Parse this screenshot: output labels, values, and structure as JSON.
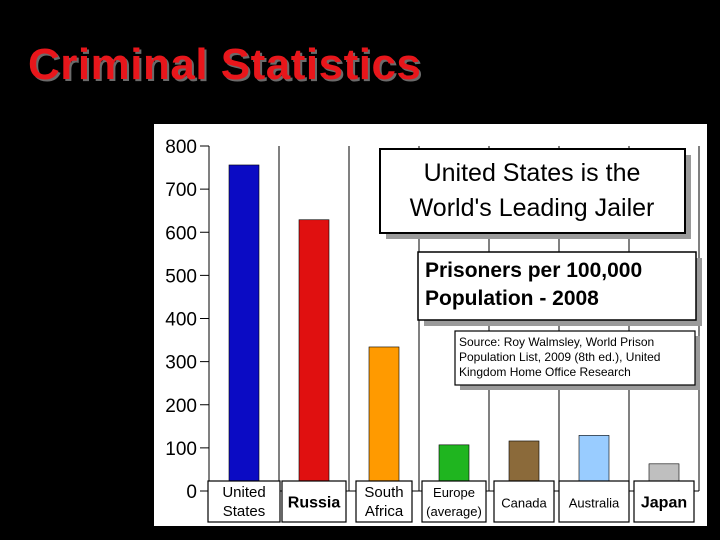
{
  "slide": {
    "title": "Criminal Statistics"
  },
  "colors": {
    "background": "#000000",
    "title": "#e8161b"
  },
  "chart_data": {
    "type": "bar",
    "categories": [
      [
        "United",
        "States"
      ],
      [
        "Russia"
      ],
      [
        "South",
        "Africa"
      ],
      [
        "Europe",
        "(average)"
      ],
      [
        "Canada"
      ],
      [
        "Australia"
      ],
      [
        "Japan"
      ]
    ],
    "values": [
      756,
      629,
      334,
      107,
      116,
      129,
      63
    ],
    "bar_colors": [
      "#0b0bc4",
      "#e01010",
      "#ff9a00",
      "#1fb51f",
      "#8b6a3a",
      "#99ccff",
      "#bfbfbf"
    ],
    "ylim": [
      0,
      800
    ],
    "yticks": [
      "0",
      "100",
      "200",
      "300",
      "400",
      "500",
      "600",
      "700",
      "800"
    ],
    "grid": "vertical",
    "annotations": {
      "headline": [
        "United States is the",
        "World's Leading Jailer"
      ],
      "subtitle": [
        "Prisoners per 100,000",
        "Population - 2008"
      ],
      "source": [
        "Source: Roy Walmsley, World Prison",
        "Population List, 2009 (8th ed.), United",
        "Kingdom Home Office Research"
      ]
    }
  }
}
